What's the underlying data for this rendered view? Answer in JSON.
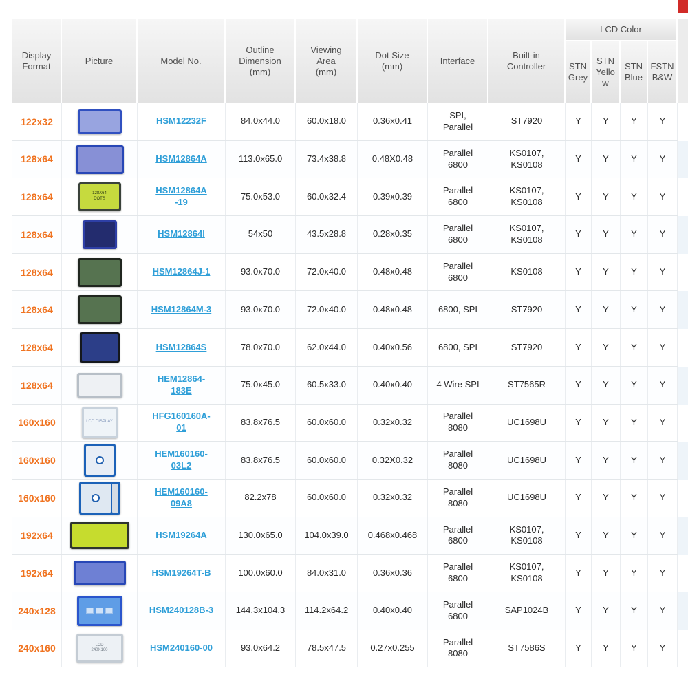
{
  "colors": {
    "format_accent": "#f07320",
    "link_blue": "#2f9fd8",
    "header_text": "#4f4f4f",
    "header_bg": "#ececec"
  },
  "table": {
    "headers": {
      "display_format": "Display\nFormat",
      "picture": "Picture",
      "model_no": "Model No.",
      "outline": "Outline\nDimension\n(mm)",
      "viewing": "Viewing\nArea\n(mm)",
      "dot_size": "Dot Size\n(mm)",
      "interface": "Interface",
      "controller": "Built-in\nController",
      "lcd_color": "LCD Color",
      "lcd_sub": [
        "STN Grey",
        "STN Yellow",
        "STN Blue",
        "FSTN B&W"
      ]
    },
    "rows": [
      {
        "format": "122x32",
        "model": "HSM12232F",
        "outline": "84.0x44.0",
        "viewing": "60.0x18.0",
        "dot": "0.36x0.41",
        "interface": "SPI,\nParallel",
        "controller": "ST7920",
        "lcd": [
          "Y",
          "Y",
          "Y",
          "Y"
        ],
        "pic": {
          "w": 64,
          "h": 36,
          "body": "#3050c0",
          "screen": "#98a4e0",
          "label": "",
          "text": ""
        }
      },
      {
        "format": "128x64",
        "model": "HSM12864A",
        "outline": "113.0x65.0",
        "viewing": "73.4x38.8",
        "dot": "0.48X0.48",
        "interface": "Parallel\n6800",
        "controller": "KS0107,\nKS0108",
        "lcd": [
          "Y",
          "Y",
          "Y",
          "Y"
        ],
        "pic": {
          "w": 70,
          "h": 42,
          "body": "#2847b6",
          "screen": "#8790d6",
          "label": "",
          "text": ""
        }
      },
      {
        "format": "128x64",
        "model": "HSM12864A\n-19",
        "outline": "75.0x53.0",
        "viewing": "60.0x32.4",
        "dot": "0.39x0.39",
        "interface": "Parallel\n6800",
        "controller": "KS0107,\nKS0108",
        "lcd": [
          "Y",
          "Y",
          "Y",
          "Y"
        ],
        "pic": {
          "w": 62,
          "h": 42,
          "body": "#3a423a",
          "screen": "#c6da3e",
          "label": "128X64\nDOTS",
          "text": "#2e3c16"
        }
      },
      {
        "format": "128x64",
        "model": "HSM12864I",
        "outline": "54x50",
        "viewing": "43.5x28.8",
        "dot": "0.28x0.35",
        "interface": "Parallel\n6800",
        "controller": "KS0107,\nKS0108",
        "lcd": [
          "Y",
          "Y",
          "Y",
          "Y"
        ],
        "pic": {
          "w": 50,
          "h": 42,
          "body": "#2e3fa6",
          "screen": "#232c6e",
          "label": "",
          "text": ""
        }
      },
      {
        "format": "128x64",
        "model": "HSM12864J-1",
        "outline": "93.0x70.0",
        "viewing": "72.0x40.0",
        "dot": "0.48x0.48",
        "interface": "Parallel\n6800",
        "controller": "KS0108",
        "lcd": [
          "Y",
          "Y",
          "Y",
          "Y"
        ],
        "pic": {
          "w": 64,
          "h": 42,
          "body": "#20261f",
          "screen": "#567350",
          "label": "",
          "text": ""
        }
      },
      {
        "format": "128x64",
        "model": "HSM12864M-3",
        "outline": "93.0x70.0",
        "viewing": "72.0x40.0",
        "dot": "0.48x0.48",
        "interface": "6800, SPI",
        "controller": "ST7920",
        "lcd": [
          "Y",
          "Y",
          "Y",
          "Y"
        ],
        "pic": {
          "w": 64,
          "h": 42,
          "body": "#20261f",
          "screen": "#567350",
          "label": "",
          "text": ""
        }
      },
      {
        "format": "128x64",
        "model": "HSM12864S",
        "outline": "78.0x70.0",
        "viewing": "62.0x44.0",
        "dot": "0.40x0.56",
        "interface": "6800, SPI",
        "controller": "ST7920",
        "lcd": [
          "Y",
          "Y",
          "Y",
          "Y"
        ],
        "pic": {
          "w": 58,
          "h": 44,
          "body": "#15181c",
          "screen": "#2c3e88",
          "label": "",
          "text": ""
        }
      },
      {
        "format": "128x64",
        "model": "HEM12864-\n183E",
        "outline": "75.0x45.0",
        "viewing": "60.5x33.0",
        "dot": "0.40x0.40",
        "interface": "4 Wire SPI",
        "controller": "ST7565R",
        "lcd": [
          "Y",
          "Y",
          "Y",
          "Y"
        ],
        "pic": {
          "w": 66,
          "h": 36,
          "body": "#b7bfc7",
          "screen": "#eef1f4",
          "label": "",
          "text": ""
        }
      },
      {
        "format": "160x160",
        "model": "HFG160160A-\n01",
        "outline": "83.8x76.5",
        "viewing": "60.0x60.0",
        "dot": "0.32x0.32",
        "interface": "Parallel\n8080",
        "controller": "UC1698U",
        "lcd": [
          "Y",
          "Y",
          "Y",
          "Y"
        ],
        "pic": {
          "w": 52,
          "h": 46,
          "body": "#c8d2dc",
          "screen": "#eff4f8",
          "label": "LCD DISPLAY",
          "text": "#7a8fb5"
        }
      },
      {
        "format": "160x160",
        "model": "HEM160160-\n03L2",
        "outline": "83.8x76.5",
        "viewing": "60.0x60.0",
        "dot": "0.32X0.32",
        "interface": "Parallel\n8080",
        "controller": "UC1698U",
        "lcd": [
          "Y",
          "Y",
          "Y",
          "Y"
        ],
        "pic": {
          "w": 46,
          "h": 48,
          "body": "#1c62b8",
          "screen": "#e8eef6",
          "label": "",
          "text": "",
          "ring": true
        }
      },
      {
        "format": "160x160",
        "model": "HEM160160-\n09A8",
        "outline": "82.2x78",
        "viewing": "60.0x60.0",
        "dot": "0.32x0.32",
        "interface": "Parallel\n8080",
        "controller": "UC1698U",
        "lcd": [
          "Y",
          "Y",
          "Y",
          "Y"
        ],
        "pic": {
          "w": 60,
          "h": 48,
          "body": "#1c62b8",
          "screen": "#dfe8f2",
          "label": "",
          "text": "",
          "ring": true,
          "cable": true
        }
      },
      {
        "format": "192x64",
        "model": "HSM19264A",
        "outline": "130.0x65.0",
        "viewing": "104.0x39.0",
        "dot": "0.468x0.468",
        "interface": "Parallel\n6800",
        "controller": "KS0107,\nKS0108",
        "lcd": [
          "Y",
          "Y",
          "Y",
          "Y"
        ],
        "pic": {
          "w": 86,
          "h": 40,
          "body": "#2e342e",
          "screen": "#c6dc2e",
          "label": "",
          "text": ""
        }
      },
      {
        "format": "192x64",
        "model": "HSM19264T-B",
        "outline": "100.0x60.0",
        "viewing": "84.0x31.0",
        "dot": "0.36x0.36",
        "interface": "Parallel\n6800",
        "controller": "KS0107,\nKS0108",
        "lcd": [
          "Y",
          "Y",
          "Y",
          "Y"
        ],
        "pic": {
          "w": 76,
          "h": 36,
          "body": "#2847b6",
          "screen": "#6e80d4",
          "label": "",
          "text": ""
        }
      },
      {
        "format": "240x128",
        "model": "HSM240128B-3",
        "outline": "144.3x104.3",
        "viewing": "114.2x64.2",
        "dot": "0.40x0.40",
        "interface": "Parallel\n6800",
        "controller": "SAP1024B",
        "lcd": [
          "Y",
          "Y",
          "Y",
          "Y"
        ],
        "pic": {
          "w": 66,
          "h": 44,
          "body": "#2a55cc",
          "screen": "#5f9de6",
          "label": "",
          "text": "",
          "blocks": true
        }
      },
      {
        "format": "240x160",
        "model": "HSM240160-00",
        "outline": "93.0x64.2",
        "viewing": "78.5x47.5",
        "dot": "0.27x0.255",
        "interface": "Parallel\n8080",
        "controller": "ST7586S",
        "lcd": [
          "Y",
          "Y",
          "Y",
          "Y"
        ],
        "pic": {
          "w": 68,
          "h": 42,
          "body": "#c4ccd4",
          "screen": "#edf1f5",
          "label": "LCD\n240X160",
          "text": "#707a84"
        }
      }
    ]
  }
}
